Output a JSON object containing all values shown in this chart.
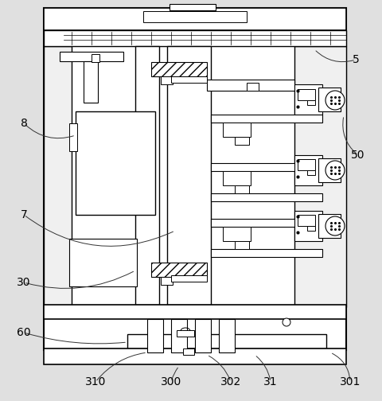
{
  "bg_color": "#e0e0e0",
  "line_color": "#000000",
  "fig_width": 4.8,
  "fig_height": 5.04,
  "dpi": 100
}
